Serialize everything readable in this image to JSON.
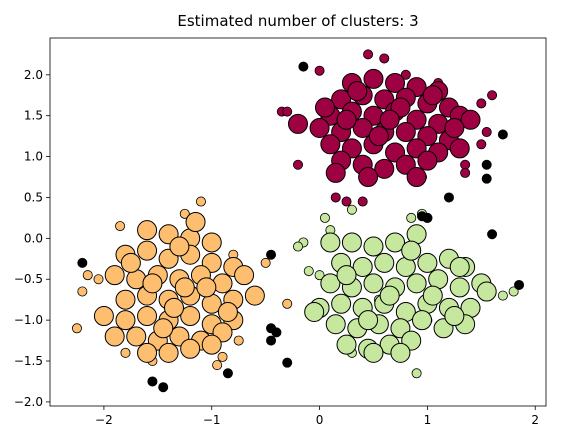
{
  "chart_data": {
    "type": "scatter",
    "title": "Estimated number of clusters: 3",
    "xlabel": "",
    "ylabel": "",
    "xlim": [
      -2.5,
      2.1
    ],
    "ylim": [
      -2.05,
      2.45
    ],
    "grid": false,
    "legend": null,
    "x_ticks": [
      -2,
      -1,
      0,
      1,
      2
    ],
    "x_tick_labels": [
      "−2",
      "−1",
      "0",
      "1",
      "2"
    ],
    "y_ticks": [
      -2.0,
      -1.5,
      -1.0,
      -0.5,
      0.0,
      0.5,
      1.0,
      1.5,
      2.0
    ],
    "y_tick_labels": [
      "−2.0",
      "−1.5",
      "−1.0",
      "−0.5",
      "0.0",
      "0.5",
      "1.0",
      "1.5",
      "2.0"
    ],
    "series": [
      {
        "color": "#9e0142",
        "core_points": [
          [
            0.3,
            1.9
          ],
          [
            0.5,
            1.95
          ],
          [
            0.7,
            1.9
          ],
          [
            0.9,
            1.85
          ],
          [
            1.1,
            1.8
          ],
          [
            0.2,
            1.7
          ],
          [
            0.4,
            1.75
          ],
          [
            0.6,
            1.7
          ],
          [
            0.8,
            1.72
          ],
          [
            1.0,
            1.65
          ],
          [
            1.2,
            1.6
          ],
          [
            1.3,
            1.5
          ],
          [
            0.1,
            1.5
          ],
          [
            0.3,
            1.55
          ],
          [
            0.5,
            1.5
          ],
          [
            0.7,
            1.55
          ],
          [
            0.9,
            1.45
          ],
          [
            1.1,
            1.4
          ],
          [
            1.4,
            1.45
          ],
          [
            0.0,
            1.35
          ],
          [
            0.2,
            1.3
          ],
          [
            0.4,
            1.35
          ],
          [
            0.6,
            1.3
          ],
          [
            0.8,
            1.3
          ],
          [
            1.0,
            1.25
          ],
          [
            1.2,
            1.2
          ],
          [
            -0.2,
            1.4
          ],
          [
            0.1,
            1.15
          ],
          [
            0.3,
            1.1
          ],
          [
            0.5,
            1.15
          ],
          [
            0.7,
            1.05
          ],
          [
            0.9,
            1.1
          ],
          [
            1.1,
            1.05
          ],
          [
            0.2,
            0.95
          ],
          [
            0.4,
            0.9
          ],
          [
            0.6,
            0.85
          ],
          [
            0.8,
            0.9
          ],
          [
            1.0,
            0.95
          ],
          [
            0.15,
            0.8
          ],
          [
            0.9,
            0.75
          ],
          [
            1.3,
            1.1
          ],
          [
            0.35,
            1.8
          ],
          [
            0.75,
            1.6
          ],
          [
            0.55,
            1.25
          ],
          [
            1.25,
            1.35
          ],
          [
            0.05,
            1.6
          ],
          [
            0.45,
            0.75
          ],
          [
            0.65,
            1.45
          ],
          [
            1.05,
            1.75
          ],
          [
            0.25,
            1.45
          ]
        ],
        "border_points": [
          [
            0.45,
            2.25
          ],
          [
            0.6,
            2.2
          ],
          [
            0.0,
            2.05
          ],
          [
            1.1,
            1.9
          ],
          [
            1.5,
            1.65
          ],
          [
            1.6,
            1.75
          ],
          [
            1.55,
            1.3
          ],
          [
            1.5,
            1.15
          ],
          [
            -0.35,
            1.55
          ],
          [
            -0.3,
            1.55
          ],
          [
            -0.2,
            0.9
          ],
          [
            0.25,
            0.45
          ],
          [
            0.4,
            0.45
          ],
          [
            0.15,
            0.5
          ],
          [
            1.35,
            0.9
          ],
          [
            1.35,
            0.8
          ],
          [
            0.95,
            0.75
          ],
          [
            0.8,
            2.0
          ]
        ]
      },
      {
        "color": "#fdbf6f",
        "core_points": [
          [
            -1.6,
            0.1
          ],
          [
            -1.4,
            0.05
          ],
          [
            -1.2,
            0.0
          ],
          [
            -1.0,
            -0.05
          ],
          [
            -1.8,
            -0.2
          ],
          [
            -1.6,
            -0.15
          ],
          [
            -1.4,
            -0.25
          ],
          [
            -1.2,
            -0.2
          ],
          [
            -1.0,
            -0.3
          ],
          [
            -0.8,
            -0.35
          ],
          [
            -1.9,
            -0.45
          ],
          [
            -1.7,
            -0.5
          ],
          [
            -1.5,
            -0.45
          ],
          [
            -1.3,
            -0.5
          ],
          [
            -1.1,
            -0.45
          ],
          [
            -0.9,
            -0.55
          ],
          [
            -0.6,
            -0.7
          ],
          [
            -1.8,
            -0.75
          ],
          [
            -1.6,
            -0.7
          ],
          [
            -1.4,
            -0.75
          ],
          [
            -1.2,
            -0.7
          ],
          [
            -1.0,
            -0.8
          ],
          [
            -0.8,
            -0.75
          ],
          [
            -2.0,
            -0.95
          ],
          [
            -1.8,
            -1.0
          ],
          [
            -1.6,
            -0.95
          ],
          [
            -1.4,
            -1.0
          ],
          [
            -1.2,
            -0.95
          ],
          [
            -1.0,
            -1.05
          ],
          [
            -0.8,
            -1.0
          ],
          [
            -1.9,
            -1.2
          ],
          [
            -1.7,
            -1.2
          ],
          [
            -1.5,
            -1.25
          ],
          [
            -1.3,
            -1.2
          ],
          [
            -1.1,
            -1.25
          ],
          [
            -0.9,
            -1.15
          ],
          [
            -1.6,
            -1.4
          ],
          [
            -1.4,
            -1.4
          ],
          [
            -1.2,
            -1.35
          ],
          [
            -1.0,
            -1.3
          ],
          [
            -1.15,
            0.2
          ],
          [
            -1.3,
            -0.1
          ],
          [
            -0.7,
            -0.45
          ],
          [
            -1.55,
            -0.55
          ],
          [
            -1.25,
            -0.6
          ],
          [
            -0.85,
            -0.9
          ],
          [
            -1.75,
            -0.3
          ],
          [
            -1.45,
            -1.1
          ],
          [
            -1.05,
            -0.6
          ],
          [
            -1.35,
            -0.85
          ]
        ],
        "border_points": [
          [
            -1.1,
            0.45
          ],
          [
            -1.25,
            0.3
          ],
          [
            -1.85,
            0.15
          ],
          [
            -2.25,
            -1.1
          ],
          [
            -2.15,
            -0.45
          ],
          [
            -2.2,
            -0.65
          ],
          [
            -2.05,
            -0.5
          ],
          [
            -1.8,
            -1.4
          ],
          [
            -1.55,
            -1.5
          ],
          [
            -0.9,
            -1.45
          ],
          [
            -0.95,
            -1.55
          ],
          [
            -0.75,
            -1.25
          ],
          [
            -0.5,
            -0.3
          ],
          [
            -0.3,
            -0.8
          ],
          [
            -0.8,
            -0.2
          ]
        ]
      },
      {
        "color": "#c6e89e",
        "core_points": [
          [
            0.1,
            -0.05
          ],
          [
            0.3,
            -0.05
          ],
          [
            0.5,
            -0.1
          ],
          [
            0.7,
            -0.05
          ],
          [
            0.9,
            0.05
          ],
          [
            0.2,
            -0.3
          ],
          [
            0.4,
            -0.35
          ],
          [
            0.6,
            -0.3
          ],
          [
            0.8,
            -0.35
          ],
          [
            1.0,
            -0.3
          ],
          [
            1.2,
            -0.25
          ],
          [
            1.35,
            -0.35
          ],
          [
            0.1,
            -0.55
          ],
          [
            0.3,
            -0.6
          ],
          [
            0.5,
            -0.55
          ],
          [
            0.7,
            -0.6
          ],
          [
            0.9,
            -0.55
          ],
          [
            1.1,
            -0.5
          ],
          [
            1.3,
            -0.6
          ],
          [
            1.5,
            -0.55
          ],
          [
            1.55,
            -0.65
          ],
          [
            0.0,
            -0.85
          ],
          [
            0.2,
            -0.8
          ],
          [
            0.4,
            -0.85
          ],
          [
            0.6,
            -0.8
          ],
          [
            0.8,
            -0.9
          ],
          [
            1.0,
            -0.8
          ],
          [
            1.2,
            -0.85
          ],
          [
            1.4,
            -0.85
          ],
          [
            0.15,
            -1.05
          ],
          [
            0.35,
            -1.1
          ],
          [
            0.55,
            -1.05
          ],
          [
            0.75,
            -1.1
          ],
          [
            0.95,
            -1.0
          ],
          [
            1.15,
            -1.1
          ],
          [
            1.35,
            -1.05
          ],
          [
            0.25,
            -1.3
          ],
          [
            0.45,
            -1.35
          ],
          [
            0.65,
            -1.3
          ],
          [
            0.85,
            -1.25
          ],
          [
            0.5,
            -1.4
          ],
          [
            0.75,
            -1.4
          ],
          [
            -0.05,
            -0.9
          ],
          [
            1.3,
            -0.35
          ],
          [
            0.65,
            -0.7
          ],
          [
            0.25,
            -0.45
          ],
          [
            1.05,
            -0.7
          ],
          [
            0.85,
            -0.15
          ],
          [
            0.45,
            -1.0
          ],
          [
            1.25,
            -0.95
          ]
        ],
        "border_points": [
          [
            0.05,
            0.25
          ],
          [
            0.1,
            0.1
          ],
          [
            0.3,
            0.35
          ],
          [
            0.85,
            0.25
          ],
          [
            0.95,
            0.3
          ],
          [
            1.0,
            0.25
          ],
          [
            -0.15,
            -0.05
          ],
          [
            -0.2,
            -0.1
          ],
          [
            -0.1,
            -0.4
          ],
          [
            0.0,
            -0.45
          ],
          [
            1.7,
            -0.7
          ],
          [
            1.8,
            -0.65
          ],
          [
            1.3,
            -1.05
          ],
          [
            0.3,
            -1.4
          ],
          [
            0.9,
            -1.65
          ],
          [
            1.0,
            -1.0
          ],
          [
            0.55,
            -0.75
          ]
        ]
      },
      {
        "color": "#000000",
        "name": "noise",
        "points": [
          [
            -0.15,
            2.1
          ],
          [
            1.7,
            1.27
          ],
          [
            1.55,
            0.9
          ],
          [
            1.55,
            0.73
          ],
          [
            1.2,
            0.5
          ],
          [
            0.95,
            0.27
          ],
          [
            1.0,
            0.25
          ],
          [
            1.6,
            0.05
          ],
          [
            1.85,
            -0.57
          ],
          [
            -0.45,
            -0.2
          ],
          [
            -2.2,
            -0.3
          ],
          [
            -0.45,
            -1.1
          ],
          [
            -0.4,
            -1.15
          ],
          [
            -0.45,
            -1.25
          ],
          [
            -0.3,
            -1.52
          ],
          [
            -0.85,
            -1.65
          ],
          [
            -1.55,
            -1.75
          ],
          [
            -1.45,
            -1.82
          ]
        ]
      }
    ]
  }
}
